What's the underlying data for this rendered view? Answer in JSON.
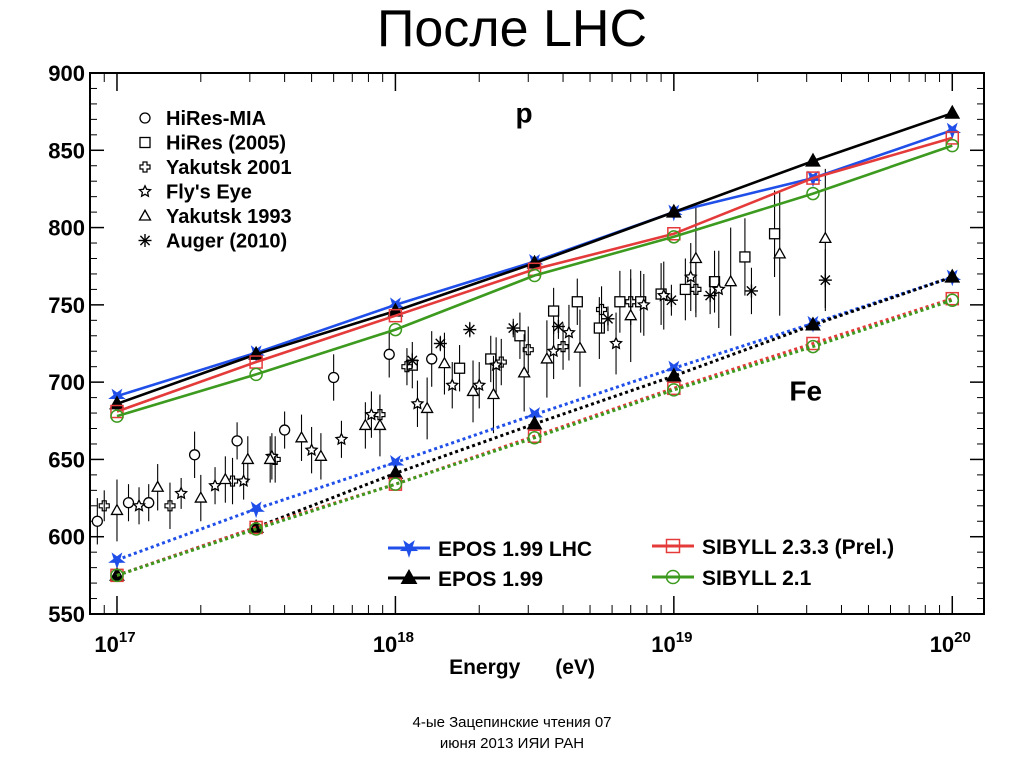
{
  "slide": {
    "title": "После LHC",
    "footer_line1": "4-ые Зацепинские чтения 07",
    "footer_line2": "июня 2013 ИЯИ РАН"
  },
  "chart_data": {
    "type": "scatter",
    "title": "",
    "xlabel": "Energy      (eV)",
    "ylabel": "",
    "x_scale": "log",
    "xlim": [
      8e+16,
      1.3e+20
    ],
    "ylim": [
      550,
      900
    ],
    "x_ticks": [
      {
        "value": 1e+17,
        "base": "10",
        "exp": "17"
      },
      {
        "value": 1e+18,
        "base": "10",
        "exp": "18"
      },
      {
        "value": 1e+19,
        "base": "10",
        "exp": "19"
      },
      {
        "value": 1e+20,
        "base": "10",
        "exp": "20"
      }
    ],
    "y_ticks": [
      550,
      600,
      650,
      700,
      750,
      800,
      850,
      900
    ],
    "grid": false,
    "annotations": [
      {
        "text": "p",
        "x": 2.7e+18,
        "y": 868
      },
      {
        "text": "Fe",
        "x": 2.6e+19,
        "y": 688
      }
    ],
    "model_series": [
      {
        "name": "EPOS 1.99 LHC",
        "color": "#1f4fe8",
        "marker": "star-down",
        "x": [
          1e+17,
          3.16e+17,
          1e+18,
          3.16e+18,
          1e+19,
          3.16e+19,
          1e+20
        ],
        "proton": [
          691,
          719,
          750,
          778,
          810,
          832,
          863
        ],
        "iron": [
          585,
          618,
          648,
          679,
          709,
          738,
          768
        ]
      },
      {
        "name": "EPOS 1.99",
        "color": "#000000",
        "marker": "triangle",
        "x": [
          1e+17,
          3.16e+17,
          1e+18,
          3.16e+18,
          1e+19,
          3.16e+19,
          1e+20
        ],
        "proton": [
          686,
          718,
          746,
          777,
          810,
          843,
          874
        ],
        "iron": [
          575,
          606,
          641,
          673,
          704,
          737,
          768
        ]
      },
      {
        "name": "SIBYLL 2.3.3 (Prel.)",
        "color": "#e43a3a",
        "marker": "square",
        "x": [
          1e+17,
          3.16e+17,
          1e+18,
          3.16e+18,
          1e+19,
          3.16e+19,
          1e+20
        ],
        "proton": [
          681,
          713,
          743,
          773,
          796,
          832,
          858
        ],
        "iron": [
          575,
          606,
          634,
          665,
          696,
          725,
          754
        ]
      },
      {
        "name": "SIBYLL 2.1",
        "color": "#3c9a1e",
        "marker": "circle",
        "x": [
          1e+17,
          3.16e+17,
          1e+18,
          3.16e+18,
          1e+19,
          3.16e+19,
          1e+20
        ],
        "proton": [
          678,
          705,
          734,
          769,
          794,
          822,
          853
        ],
        "iron": [
          575,
          605,
          634,
          664,
          695,
          723,
          753
        ]
      }
    ],
    "data_series": [
      {
        "name": "HiRes-MIA",
        "marker": "circle",
        "x": [
          8.5e+16,
          1.1e+17,
          1.3e+17,
          1.9e+17,
          2.7e+17,
          4e+17,
          6e+17,
          9.5e+17,
          1.35e+18
        ],
        "y": [
          610,
          622,
          622,
          653,
          662,
          669,
          703,
          718,
          715
        ],
        "err": [
          15,
          12,
          12,
          15,
          12,
          12,
          15,
          15,
          18
        ]
      },
      {
        "name": "HiRes (2005)",
        "marker": "square",
        "x": [
          1.15e+18,
          1.7e+18,
          2.2e+18,
          2.8e+18,
          3.7e+18,
          4.5e+18,
          5.4e+18,
          6.4e+18,
          7.6e+18,
          9e+18,
          1.1e+19,
          1.4e+19,
          1.8e+19,
          2.3e+19
        ],
        "y": [
          711,
          709,
          715,
          730,
          746,
          752,
          735,
          752,
          752,
          757,
          760,
          765,
          781,
          796
        ],
        "err": [
          15,
          15,
          15,
          15,
          15,
          15,
          20,
          20,
          20,
          20,
          20,
          20,
          25,
          28
        ]
      },
      {
        "name": "Yakutsk 2001",
        "marker": "cross",
        "x": [
          9e+16,
          1.55e+17,
          2.6e+17,
          3.7e+17,
          8.8e+17,
          1.1e+18,
          2.4e+18,
          3e+18,
          4e+18,
          5.5e+18,
          7e+18,
          1.2e+19
        ],
        "y": [
          620,
          620,
          636,
          650,
          679,
          710,
          713,
          721,
          723,
          747,
          752,
          760
        ],
        "err": [
          10,
          15,
          15,
          15,
          12,
          12,
          15,
          15,
          15,
          15,
          15,
          18
        ]
      },
      {
        "name": "Fly's Eye",
        "marker": "star",
        "x": [
          1.2e+17,
          1.7e+17,
          2.25e+17,
          2.85e+17,
          3.6e+17,
          5e+17,
          6.4e+17,
          8.2e+17,
          1.2e+18,
          1.6e+18,
          2e+18,
          2.3e+18,
          3.7e+18,
          4.2e+18,
          6.2e+18,
          7.8e+18,
          9.2e+18,
          1.15e+19,
          1.45e+19
        ],
        "y": [
          620,
          628,
          633,
          636,
          652,
          656,
          663,
          679,
          686,
          698,
          698,
          711,
          720,
          732,
          725,
          750,
          756,
          768,
          760
        ],
        "err": [
          12,
          10,
          12,
          12,
          15,
          15,
          12,
          15,
          15,
          15,
          15,
          18,
          18,
          18,
          20,
          20,
          22,
          22,
          25
        ]
      },
      {
        "name": "Yakutsk 1993",
        "marker": "triangle",
        "x": [
          1e+17,
          1.4e+17,
          2e+17,
          2.45e+17,
          2.95e+17,
          3.55e+17,
          4.6e+17,
          5.4e+17,
          7.8e+17,
          8.8e+17,
          1.3e+18,
          1.5e+18,
          1.9e+18,
          2.25e+18,
          2.9e+18,
          3.5e+18,
          4.6e+18,
          7e+18,
          1.2e+19,
          1.6e+19,
          2.4e+19,
          3.5e+19
        ],
        "y": [
          617,
          632,
          625,
          637,
          650,
          650,
          664,
          652,
          672,
          672,
          683,
          712,
          694,
          692,
          706,
          715,
          722,
          743,
          780,
          765,
          783,
          793
        ],
        "err": [
          20,
          15,
          15,
          15,
          15,
          15,
          15,
          15,
          15,
          20,
          20,
          20,
          20,
          25,
          25,
          25,
          25,
          30,
          35,
          35,
          40,
          45
        ]
      },
      {
        "name": "Auger (2010)",
        "marker": "asterisk",
        "x": [
          1.15e+18,
          1.45e+18,
          1.85e+18,
          2.65e+18,
          3.85e+18,
          5.8e+18,
          9.8e+18,
          1.35e+19,
          1.9e+19,
          3.5e+19
        ],
        "y": [
          714,
          725,
          734,
          735,
          736,
          741,
          753,
          756,
          759,
          766
        ],
        "err": [
          5,
          5,
          5,
          6,
          8,
          8,
          10,
          12,
          15,
          20
        ]
      }
    ]
  }
}
